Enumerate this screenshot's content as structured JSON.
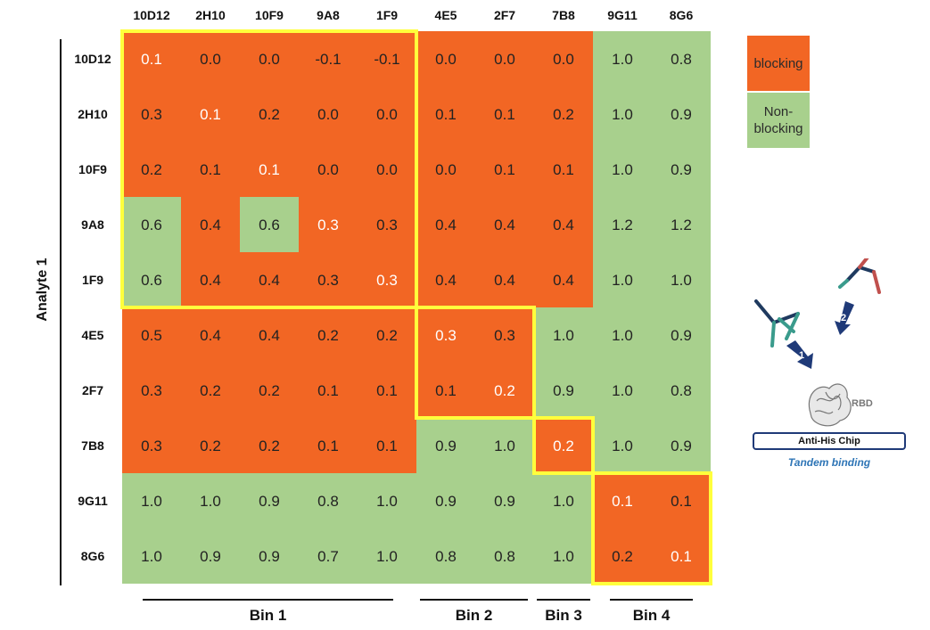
{
  "chart_data": {
    "type": "heatmap",
    "columns": [
      "10D12",
      "2H10",
      "10F9",
      "9A8",
      "1F9",
      "4E5",
      "2F7",
      "7B8",
      "9G11",
      "8G6"
    ],
    "rows": [
      "10D12",
      "2H10",
      "10F9",
      "9A8",
      "1F9",
      "4E5",
      "2F7",
      "7B8",
      "9G11",
      "8G6"
    ],
    "ylabel": "Analyte 1",
    "values": [
      [
        "0.1",
        "0.0",
        "0.0",
        "-0.1",
        "-0.1",
        "0.0",
        "0.0",
        "0.0",
        "1.0",
        "0.8"
      ],
      [
        "0.3",
        "0.1",
        "0.2",
        "0.0",
        "0.0",
        "0.1",
        "0.1",
        "0.2",
        "1.0",
        "0.9"
      ],
      [
        "0.2",
        "0.1",
        "0.1",
        "0.0",
        "0.0",
        "0.0",
        "0.1",
        "0.1",
        "1.0",
        "0.9"
      ],
      [
        "0.6",
        "0.4",
        "0.6",
        "0.3",
        "0.3",
        "0.4",
        "0.4",
        "0.4",
        "1.2",
        "1.2"
      ],
      [
        "0.6",
        "0.4",
        "0.4",
        "0.3",
        "0.3",
        "0.4",
        "0.4",
        "0.4",
        "1.0",
        "1.0"
      ],
      [
        "0.5",
        "0.4",
        "0.4",
        "0.2",
        "0.2",
        "0.3",
        "0.3",
        "1.0",
        "1.0",
        "0.9"
      ],
      [
        "0.3",
        "0.2",
        "0.2",
        "0.1",
        "0.1",
        "0.1",
        "0.2",
        "0.9",
        "1.0",
        "0.8"
      ],
      [
        "0.3",
        "0.2",
        "0.2",
        "0.1",
        "0.1",
        "0.9",
        "1.0",
        "0.2",
        "1.0",
        "0.9"
      ],
      [
        "1.0",
        "1.0",
        "0.9",
        "0.8",
        "1.0",
        "0.9",
        "0.9",
        "1.0",
        "0.1",
        "0.1"
      ],
      [
        "1.0",
        "0.9",
        "0.9",
        "0.7",
        "1.0",
        "0.8",
        "0.8",
        "1.0",
        "0.2",
        "0.1"
      ]
    ],
    "blocking": [
      [
        1,
        1,
        1,
        1,
        1,
        1,
        1,
        1,
        0,
        0
      ],
      [
        1,
        1,
        1,
        1,
        1,
        1,
        1,
        1,
        0,
        0
      ],
      [
        1,
        1,
        1,
        1,
        1,
        1,
        1,
        1,
        0,
        0
      ],
      [
        0,
        1,
        0,
        1,
        1,
        1,
        1,
        1,
        0,
        0
      ],
      [
        0,
        1,
        1,
        1,
        1,
        1,
        1,
        1,
        0,
        0
      ],
      [
        1,
        1,
        1,
        1,
        1,
        1,
        1,
        0,
        0,
        0
      ],
      [
        1,
        1,
        1,
        1,
        1,
        1,
        1,
        0,
        0,
        0
      ],
      [
        1,
        1,
        1,
        1,
        1,
        0,
        0,
        1,
        0,
        0
      ],
      [
        0,
        0,
        0,
        0,
        0,
        0,
        0,
        0,
        1,
        1
      ],
      [
        0,
        0,
        0,
        0,
        0,
        0,
        0,
        0,
        1,
        1
      ]
    ],
    "bins": [
      {
        "label": "Bin 1",
        "start": 0,
        "end": 4
      },
      {
        "label": "Bin 2",
        "start": 5,
        "end": 6
      },
      {
        "label": "Bin 3",
        "start": 7,
        "end": 7
      },
      {
        "label": "Bin 4",
        "start": 8,
        "end": 9
      }
    ],
    "colors": {
      "blocking": "#f26624",
      "non_blocking": "#a8d08d",
      "bin_outline": "#ffff3c",
      "text_dark": "#222222",
      "text_light": "#ffffff"
    }
  },
  "legend": {
    "blocking": "blocking",
    "non_blocking": "Non-blocking"
  },
  "schematic": {
    "rbd_label": "RBD",
    "chip_label": "Anti-His Chip",
    "caption": "Tandem binding",
    "step1": "1",
    "step2": "2"
  }
}
